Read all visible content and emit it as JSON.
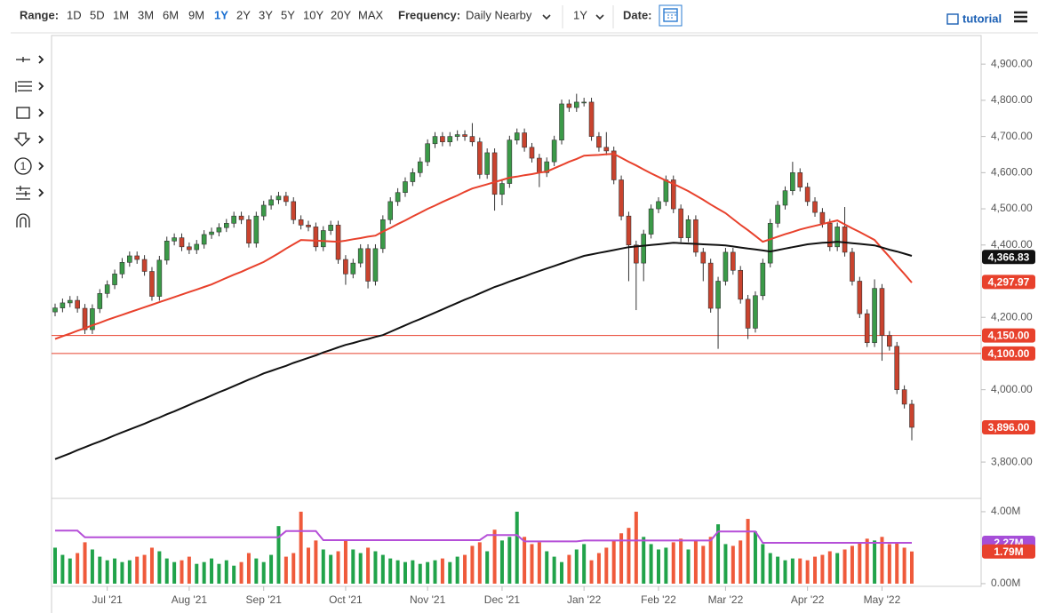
{
  "toolbar": {
    "range_label": "Range:",
    "ranges": [
      "1D",
      "5D",
      "1M",
      "3M",
      "6M",
      "9M",
      "1Y",
      "2Y",
      "3Y",
      "5Y",
      "10Y",
      "20Y",
      "MAX"
    ],
    "active_range_index": 6,
    "frequency_label": "Frequency:",
    "frequency": "Daily Nearby",
    "period": "1Y",
    "date_label": "Date:",
    "tutorial": "tutorial"
  },
  "drawing_tools_counter": "1",
  "chart_data": {
    "type": "candlestick",
    "categories": [
      null,
      null,
      null,
      null,
      null,
      null,
      null,
      "Jul '21",
      null,
      null,
      null,
      null,
      null,
      null,
      null,
      null,
      null,
      null,
      "Aug '21",
      null,
      null,
      null,
      null,
      null,
      null,
      null,
      null,
      null,
      "Sep '21",
      null,
      null,
      null,
      null,
      null,
      null,
      null,
      null,
      null,
      null,
      "Oct '21",
      null,
      null,
      null,
      null,
      null,
      null,
      null,
      null,
      null,
      null,
      "Nov '21",
      null,
      null,
      null,
      null,
      null,
      null,
      null,
      null,
      null,
      "Dec '21",
      null,
      null,
      null,
      null,
      null,
      null,
      null,
      null,
      null,
      null,
      "Jan '22",
      null,
      null,
      null,
      null,
      null,
      null,
      null,
      null,
      null,
      "Feb '22",
      null,
      null,
      null,
      null,
      null,
      null,
      null,
      null,
      "Mar '22",
      null,
      null,
      null,
      null,
      null,
      null,
      null,
      null,
      null,
      null,
      "Apr '22",
      null,
      null,
      null,
      null,
      null,
      null,
      null,
      null,
      null,
      "May '22",
      null,
      null,
      null,
      null
    ],
    "open": [
      4215,
      4226,
      4240,
      4247,
      4225,
      4166,
      4224,
      4266,
      4290,
      4320,
      4352,
      4370,
      4360,
      4327,
      4258,
      4358,
      4411,
      4420,
      4395,
      4387,
      4402,
      4429,
      4436,
      4448,
      4460,
      4480,
      4470,
      4405,
      4480,
      4510,
      4525,
      4535,
      4520,
      4470,
      4455,
      4450,
      4395,
      4440,
      4455,
      4360,
      4320,
      4350,
      4390,
      4300,
      4390,
      4470,
      4520,
      4545,
      4575,
      4600,
      4630,
      4680,
      4700,
      4685,
      4700,
      4705,
      4700,
      4685,
      4595,
      4655,
      4540,
      4570,
      4690,
      4710,
      4670,
      4640,
      4600,
      4630,
      4690,
      4790,
      4780,
      4795,
      4795,
      4700,
      4670,
      4660,
      4580,
      4480,
      4400,
      4350,
      4430,
      4500,
      4520,
      4580,
      4500,
      4420,
      4470,
      4380,
      4350,
      4225,
      4300,
      4380,
      4330,
      4250,
      4170,
      4260,
      4350,
      4460,
      4510,
      4550,
      4600,
      4560,
      4520,
      4490,
      4460,
      4395,
      4450,
      4380,
      4300,
      4210,
      4130,
      4280,
      4150,
      4120,
      4000,
      3960
    ],
    "high": [
      4238,
      4252,
      4259,
      4259,
      4237,
      4236,
      4278,
      4302,
      4332,
      4364,
      4382,
      4382,
      4372,
      4339,
      4370,
      4423,
      4432,
      4432,
      4407,
      4414,
      4441,
      4448,
      4460,
      4472,
      4492,
      4492,
      4482,
      4492,
      4522,
      4537,
      4547,
      4547,
      4532,
      4482,
      4467,
      4462,
      4452,
      4467,
      4467,
      4372,
      4362,
      4402,
      4402,
      4402,
      4482,
      4532,
      4557,
      4587,
      4612,
      4642,
      4692,
      4712,
      4712,
      4712,
      4717,
      4717,
      4737,
      4697,
      4667,
      4667,
      4582,
      4702,
      4722,
      4722,
      4682,
      4652,
      4642,
      4702,
      4802,
      4802,
      4818,
      4807,
      4807,
      4712,
      4712,
      4672,
      4592,
      4492,
      4412,
      4442,
      4512,
      4532,
      4592,
      4592,
      4512,
      4482,
      4482,
      4392,
      4362,
      4312,
      4392,
      4392,
      4342,
      4262,
      4272,
      4362,
      4472,
      4522,
      4562,
      4630,
      4612,
      4572,
      4532,
      4502,
      4472,
      4462,
      4505,
      4392,
      4312,
      4222,
      4305,
      4292,
      4162,
      4132,
      4012,
      3972
    ],
    "low": [
      4203,
      4214,
      4228,
      4213,
      4154,
      4154,
      4212,
      4254,
      4278,
      4308,
      4340,
      4348,
      4315,
      4246,
      4246,
      4346,
      4399,
      4383,
      4375,
      4375,
      4390,
      4417,
      4424,
      4436,
      4448,
      4458,
      4393,
      4393,
      4468,
      4498,
      4513,
      4508,
      4458,
      4443,
      4438,
      4383,
      4383,
      4428,
      4348,
      4290,
      4308,
      4338,
      4280,
      4288,
      4378,
      4458,
      4508,
      4533,
      4563,
      4588,
      4618,
      4668,
      4673,
      4673,
      4688,
      4688,
      4673,
      4583,
      4583,
      4495,
      4510,
      4558,
      4678,
      4658,
      4628,
      4560,
      4588,
      4618,
      4678,
      4768,
      4768,
      4783,
      4688,
      4658,
      4648,
      4568,
      4468,
      4300,
      4220,
      4300,
      4418,
      4488,
      4508,
      4488,
      4408,
      4408,
      4368,
      4300,
      4213,
      4113,
      4288,
      4318,
      4238,
      4140,
      4158,
      4248,
      4338,
      4448,
      4498,
      4538,
      4548,
      4508,
      4478,
      4448,
      4383,
      4383,
      4368,
      4288,
      4198,
      4118,
      4118,
      4080,
      4108,
      3988,
      3948,
      3860
    ],
    "close": [
      4226,
      4240,
      4247,
      4225,
      4166,
      4224,
      4266,
      4290,
      4320,
      4352,
      4370,
      4360,
      4327,
      4258,
      4358,
      4411,
      4420,
      4395,
      4387,
      4402,
      4429,
      4436,
      4448,
      4460,
      4480,
      4470,
      4405,
      4480,
      4510,
      4525,
      4535,
      4520,
      4470,
      4455,
      4450,
      4395,
      4440,
      4455,
      4360,
      4320,
      4350,
      4390,
      4300,
      4390,
      4470,
      4520,
      4545,
      4575,
      4600,
      4630,
      4680,
      4700,
      4685,
      4700,
      4705,
      4700,
      4685,
      4595,
      4655,
      4540,
      4570,
      4690,
      4710,
      4670,
      4640,
      4600,
      4630,
      4690,
      4790,
      4780,
      4795,
      4795,
      4700,
      4670,
      4660,
      4580,
      4480,
      4400,
      4350,
      4430,
      4500,
      4520,
      4580,
      4500,
      4420,
      4470,
      4380,
      4350,
      4225,
      4300,
      4380,
      4330,
      4250,
      4170,
      4260,
      4350,
      4460,
      4510,
      4550,
      4600,
      4560,
      4520,
      4490,
      4460,
      4395,
      4450,
      4380,
      4300,
      4210,
      4130,
      4280,
      4150,
      4120,
      4000,
      3960,
      3896
    ],
    "up_color": "#3b9a48",
    "down_color": "#c9432e",
    "ylim": [
      3702,
      4979
    ],
    "yticks": [
      {
        "value": 3800,
        "label": "3,800.00"
      },
      {
        "value": 4000,
        "label": "4,000.00"
      },
      {
        "value": 4200,
        "label": "4,200.00"
      },
      {
        "value": 4400,
        "label": "4,400.00"
      },
      {
        "value": 4500,
        "label": "4,500.00"
      },
      {
        "value": 4600,
        "label": "4,600.00"
      },
      {
        "value": 4700,
        "label": "4,700.00"
      },
      {
        "value": 4800,
        "label": "4,800.00"
      },
      {
        "value": 4900,
        "label": "4,900.00"
      }
    ],
    "moving_averages": [
      {
        "color": "#e8412c",
        "values": [
          4140,
          4148,
          4155,
          4163,
          4170,
          4178,
          4185,
          4193,
          4200,
          4207,
          4214,
          4221,
          4228,
          4235,
          4242,
          4249,
          4256,
          4263,
          4270,
          4277,
          4284,
          4291,
          4300,
          4309,
          4318,
          4326,
          4335,
          4344,
          4353,
          4365,
          4377,
          4390,
          4402,
          4414,
          4413,
          4412,
          4411,
          4410,
          4409,
          4412,
          4416,
          4419,
          4423,
          4426,
          4437,
          4447,
          4458,
          4468,
          4479,
          4489,
          4500,
          4509,
          4519,
          4528,
          4537,
          4547,
          4556,
          4562,
          4568,
          4574,
          4580,
          4586,
          4589,
          4593,
          4596,
          4600,
          4603,
          4612,
          4621,
          4630,
          4638,
          4647,
          4648,
          4649,
          4651,
          4652,
          4641,
          4630,
          4620,
          4609,
          4598,
          4588,
          4578,
          4569,
          4559,
          4549,
          4537,
          4525,
          4512,
          4500,
          4488,
          4472,
          4456,
          4441,
          4425,
          4409,
          4416,
          4423,
          4430,
          4436,
          4443,
          4448,
          4453,
          4458,
          4463,
          4468,
          4457,
          4446,
          4436,
          4425,
          4414,
          4390,
          4367,
          4343,
          4320,
          4296
        ]
      },
      {
        "color": "#111111",
        "values": [
          3808,
          3816,
          3824,
          3833,
          3841,
          3849,
          3857,
          3865,
          3874,
          3882,
          3890,
          3898,
          3906,
          3915,
          3923,
          3932,
          3940,
          3949,
          3958,
          3967,
          3975,
          3984,
          3993,
          4001,
          4010,
          4019,
          4028,
          4036,
          4045,
          4052,
          4059,
          4066,
          4074,
          4081,
          4088,
          4095,
          4103,
          4110,
          4117,
          4124,
          4129,
          4135,
          4140,
          4146,
          4151,
          4160,
          4169,
          4178,
          4187,
          4195,
          4204,
          4213,
          4222,
          4231,
          4240,
          4249,
          4257,
          4266,
          4275,
          4284,
          4291,
          4299,
          4306,
          4313,
          4321,
          4328,
          4335,
          4342,
          4349,
          4356,
          4363,
          4370,
          4374,
          4378,
          4382,
          4386,
          4390,
          4394,
          4396,
          4398,
          4400,
          4402,
          4404,
          4406,
          4405,
          4404,
          4403,
          4402,
          4401,
          4400,
          4399,
          4396,
          4393,
          4390,
          4388,
          4385,
          4382,
          4386,
          4390,
          4394,
          4398,
          4402,
          4404,
          4406,
          4407,
          4409,
          4407,
          4405,
          4403,
          4401,
          4399,
          4393,
          4387,
          4382,
          4376,
          4370
        ]
      }
    ],
    "price_tags": [
      {
        "value": 4366.83,
        "label": "4,366.83",
        "color": "#111111",
        "line": false
      },
      {
        "value": 4297.97,
        "label": "4,297.97",
        "color": "#e8412c",
        "line": false
      },
      {
        "value": 4150,
        "label": "4,150.00",
        "color": "#e8412c",
        "line": true
      },
      {
        "value": 4100,
        "label": "4,100.00",
        "color": "#e8412c",
        "line": true
      },
      {
        "value": 3896,
        "label": "3,896.00",
        "color": "#e8412c",
        "line": false
      }
    ],
    "volume": {
      "values": [
        2.0,
        1.6,
        1.4,
        1.7,
        2.3,
        1.9,
        1.5,
        1.3,
        1.4,
        1.2,
        1.3,
        1.5,
        1.6,
        2.0,
        1.8,
        1.4,
        1.2,
        1.3,
        1.5,
        1.1,
        1.2,
        1.4,
        1.1,
        1.3,
        1.0,
        1.2,
        1.7,
        1.4,
        1.2,
        1.6,
        3.2,
        1.5,
        1.7,
        4.0,
        2.0,
        2.4,
        1.9,
        1.6,
        1.8,
        2.4,
        1.9,
        1.7,
        2.0,
        1.8,
        1.6,
        1.4,
        1.3,
        1.2,
        1.3,
        1.1,
        1.2,
        1.3,
        1.4,
        1.2,
        1.5,
        1.6,
        2.1,
        2.3,
        1.8,
        3.0,
        2.4,
        2.6,
        4.0,
        2.6,
        2.2,
        2.3,
        1.8,
        1.5,
        1.2,
        1.6,
        1.9,
        2.2,
        1.3,
        1.7,
        2.0,
        2.4,
        2.8,
        3.1,
        4.0,
        2.6,
        2.2,
        1.9,
        2.0,
        2.3,
        2.5,
        1.9,
        2.4,
        2.1,
        2.6,
        3.3,
        2.2,
        2.1,
        2.4,
        3.6,
        2.9,
        2.2,
        1.7,
        1.5,
        1.3,
        1.4,
        1.4,
        1.3,
        1.5,
        1.6,
        1.8,
        1.7,
        1.9,
        2.1,
        2.3,
        2.5,
        2.4,
        2.6,
        2.2,
        2.3,
        2.0,
        1.79
      ],
      "up_color": "#21a34a",
      "down_color": "#ef5a3b",
      "ylim": [
        -0.15,
        4.69
      ],
      "yticks": [
        {
          "value": 0,
          "label": "0.00M"
        },
        {
          "value": 4,
          "label": "4.00M"
        }
      ],
      "ma": {
        "color": "#b54fd8",
        "values": [
          2.95,
          2.95,
          2.95,
          2.95,
          2.58,
          2.58,
          2.58,
          2.58,
          2.58,
          2.58,
          2.58,
          2.58,
          2.58,
          2.58,
          2.58,
          2.58,
          2.58,
          2.58,
          2.58,
          2.58,
          2.58,
          2.58,
          2.58,
          2.58,
          2.58,
          2.58,
          2.58,
          2.58,
          2.58,
          2.58,
          2.58,
          2.92,
          2.92,
          2.92,
          2.92,
          2.92,
          2.42,
          2.42,
          2.42,
          2.42,
          2.42,
          2.42,
          2.42,
          2.42,
          2.42,
          2.42,
          2.42,
          2.42,
          2.42,
          2.42,
          2.42,
          2.42,
          2.42,
          2.42,
          2.42,
          2.42,
          2.42,
          2.42,
          2.7,
          2.7,
          2.7,
          2.7,
          2.7,
          2.35,
          2.35,
          2.35,
          2.35,
          2.35,
          2.35,
          2.35,
          2.35,
          2.4,
          2.4,
          2.4,
          2.4,
          2.4,
          2.4,
          2.4,
          2.4,
          2.4,
          2.4,
          2.4,
          2.4,
          2.4,
          2.4,
          2.4,
          2.4,
          2.4,
          2.4,
          2.9,
          2.9,
          2.9,
          2.9,
          2.9,
          2.9,
          2.27,
          2.27,
          2.27,
          2.27,
          2.27,
          2.27,
          2.27,
          2.27,
          2.27,
          2.27,
          2.27,
          2.27,
          2.27,
          2.27,
          2.27,
          2.27,
          2.27,
          2.27,
          2.27,
          2.27,
          2.27
        ]
      },
      "tags": [
        {
          "value": 2.27,
          "label": "2.27M",
          "color": "#a64ed8"
        },
        {
          "value": 1.79,
          "label": "1.79M",
          "color": "#e8412c"
        }
      ]
    }
  }
}
